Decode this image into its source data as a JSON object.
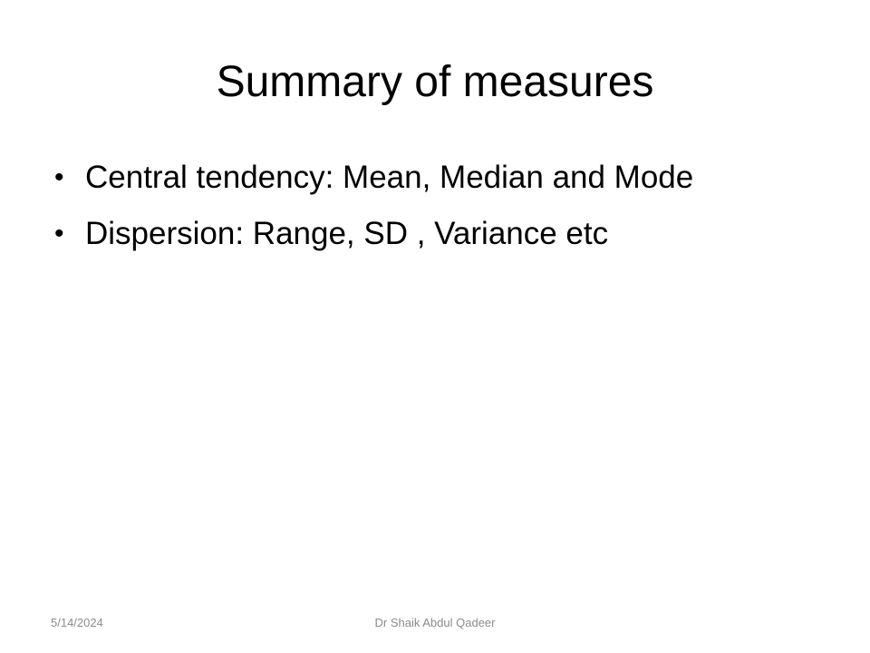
{
  "slide": {
    "title": "Summary of measures",
    "bullets": [
      {
        "marker": "•",
        "text": "Central tendency: Mean, Median and Mode"
      },
      {
        "marker": "•",
        "text": "Dispersion: Range, SD , Variance etc"
      }
    ],
    "footer": {
      "date": "5/14/2024",
      "author": "Dr Shaik Abdul Qadeer"
    }
  },
  "colors": {
    "background": "#ffffff",
    "text": "#000000",
    "footer_text": "#8b8b8b"
  }
}
